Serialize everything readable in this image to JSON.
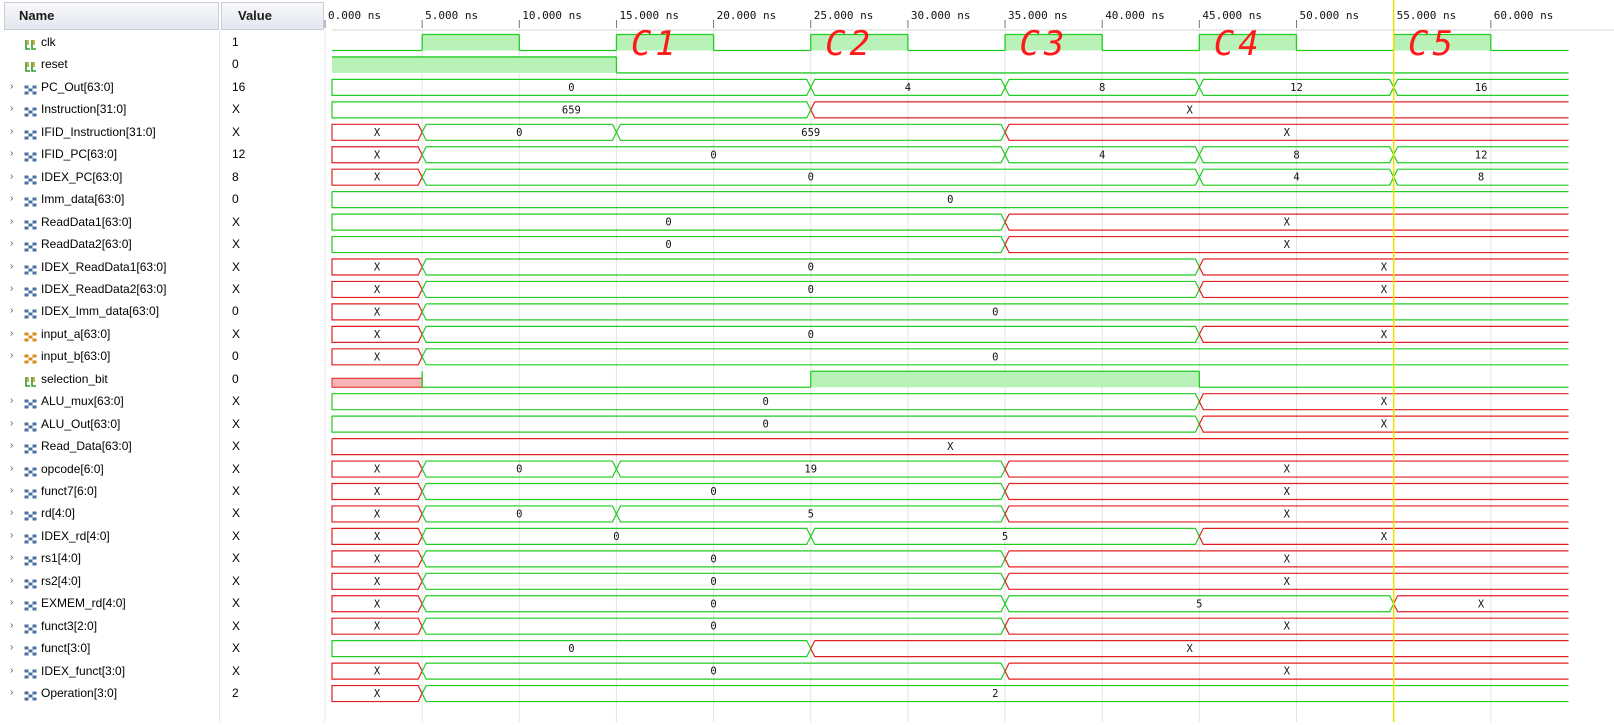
{
  "header": {
    "name_label": "Name",
    "value_label": "Value"
  },
  "time_axis": {
    "ticks": [
      "0.000 ns",
      "5.000 ns",
      "10.000 ns",
      "15.000 ns",
      "20.000 ns",
      "25.000 ns",
      "30.000 ns",
      "35.000 ns",
      "40.000 ns",
      "45.000 ns",
      "50.000 ns",
      "55.000 ns",
      "60.000 ns"
    ],
    "cursor_ns": 55
  },
  "annotations": [
    "C1",
    "C2",
    "C3",
    "C4",
    "C5"
  ],
  "colors": {
    "signal_green": "#22cc22",
    "fill_green": "#b9f2b9",
    "undefined_red": "#e02020",
    "fill_red": "#f7b3b3",
    "cursor": "#f0e000",
    "annotation": "#ff1a1a"
  },
  "signals": [
    {
      "name": "clk",
      "value": "1",
      "kind": "bit",
      "icon": "bit-signal-icon",
      "expandable": false,
      "segs": [
        [
          0,
          5,
          "0"
        ],
        [
          5,
          10,
          "1"
        ],
        [
          10,
          15,
          "0"
        ],
        [
          15,
          20,
          "1"
        ],
        [
          20,
          25,
          "0"
        ],
        [
          25,
          30,
          "1"
        ],
        [
          30,
          35,
          "0"
        ],
        [
          35,
          40,
          "1"
        ],
        [
          40,
          45,
          "0"
        ],
        [
          45,
          50,
          "1"
        ],
        [
          50,
          55,
          "0"
        ],
        [
          55,
          60,
          "1"
        ],
        [
          60,
          64,
          "0"
        ]
      ]
    },
    {
      "name": "reset",
      "value": "0",
      "kind": "bit",
      "icon": "bit-signal-icon",
      "expandable": false,
      "segs": [
        [
          0,
          15,
          "1"
        ],
        [
          15,
          64,
          "0"
        ]
      ]
    },
    {
      "name": "PC_Out[63:0]",
      "value": "16",
      "kind": "bus",
      "icon": "bus-signal-icon",
      "expandable": true,
      "segs": [
        [
          0,
          25,
          "0"
        ],
        [
          25,
          35,
          "4"
        ],
        [
          35,
          45,
          "8"
        ],
        [
          45,
          55,
          "12"
        ],
        [
          55,
          64,
          "16"
        ]
      ]
    },
    {
      "name": "Instruction[31:0]",
      "value": "X",
      "kind": "bus",
      "icon": "bus-signal-icon",
      "expandable": true,
      "segs": [
        [
          0,
          25,
          "659"
        ],
        [
          25,
          64,
          "X"
        ]
      ]
    },
    {
      "name": "IFID_Instruction[31:0]",
      "value": "X",
      "kind": "bus",
      "icon": "bus-signal-icon",
      "expandable": true,
      "segs": [
        [
          0,
          5,
          "X"
        ],
        [
          5,
          15,
          "0"
        ],
        [
          15,
          35,
          "659"
        ],
        [
          35,
          64,
          "X"
        ]
      ]
    },
    {
      "name": "IFID_PC[63:0]",
      "value": "12",
      "kind": "bus",
      "icon": "bus-signal-icon",
      "expandable": true,
      "segs": [
        [
          0,
          5,
          "X"
        ],
        [
          5,
          35,
          "0"
        ],
        [
          35,
          45,
          "4"
        ],
        [
          45,
          55,
          "8"
        ],
        [
          55,
          64,
          "12"
        ]
      ]
    },
    {
      "name": "IDEX_PC[63:0]",
      "value": "8",
      "kind": "bus",
      "icon": "bus-signal-icon",
      "expandable": true,
      "segs": [
        [
          0,
          5,
          "X"
        ],
        [
          5,
          45,
          "0"
        ],
        [
          45,
          55,
          "4"
        ],
        [
          55,
          64,
          "8"
        ]
      ]
    },
    {
      "name": "Imm_data[63:0]",
      "value": "0",
      "kind": "bus",
      "icon": "bus-signal-icon",
      "expandable": true,
      "segs": [
        [
          0,
          64,
          "0"
        ]
      ]
    },
    {
      "name": "ReadData1[63:0]",
      "value": "X",
      "kind": "bus",
      "icon": "bus-signal-icon",
      "expandable": true,
      "segs": [
        [
          0,
          35,
          "0"
        ],
        [
          35,
          64,
          "X"
        ]
      ]
    },
    {
      "name": "ReadData2[63:0]",
      "value": "X",
      "kind": "bus",
      "icon": "bus-signal-icon",
      "expandable": true,
      "segs": [
        [
          0,
          35,
          "0"
        ],
        [
          35,
          64,
          "X"
        ]
      ]
    },
    {
      "name": "IDEX_ReadData1[63:0]",
      "value": "X",
      "kind": "bus",
      "icon": "bus-signal-icon",
      "expandable": true,
      "segs": [
        [
          0,
          5,
          "X"
        ],
        [
          5,
          45,
          "0"
        ],
        [
          45,
          64,
          "X"
        ]
      ]
    },
    {
      "name": "IDEX_ReadData2[63:0]",
      "value": "X",
      "kind": "bus",
      "icon": "bus-signal-icon",
      "expandable": true,
      "segs": [
        [
          0,
          5,
          "X"
        ],
        [
          5,
          45,
          "0"
        ],
        [
          45,
          64,
          "X"
        ]
      ]
    },
    {
      "name": "IDEX_Imm_data[63:0]",
      "value": "0",
      "kind": "bus",
      "icon": "bus-signal-icon",
      "expandable": true,
      "segs": [
        [
          0,
          5,
          "X"
        ],
        [
          5,
          64,
          "0"
        ]
      ]
    },
    {
      "name": "input_a[63:0]",
      "value": "X",
      "kind": "bus",
      "icon": "input-bus-icon",
      "expandable": true,
      "segs": [
        [
          0,
          5,
          "X"
        ],
        [
          5,
          45,
          "0"
        ],
        [
          45,
          64,
          "X"
        ]
      ]
    },
    {
      "name": "input_b[63:0]",
      "value": "0",
      "kind": "bus",
      "icon": "input-bus-icon",
      "expandable": true,
      "segs": [
        [
          0,
          5,
          "X"
        ],
        [
          5,
          64,
          "0"
        ]
      ]
    },
    {
      "name": "selection_bit",
      "value": "0",
      "kind": "bit",
      "icon": "bit-signal-icon",
      "expandable": false,
      "segs": [
        [
          0,
          5,
          "X"
        ],
        [
          5,
          25,
          "0"
        ],
        [
          25,
          45,
          "1"
        ],
        [
          45,
          64,
          "0"
        ]
      ]
    },
    {
      "name": "ALU_mux[63:0]",
      "value": "X",
      "kind": "bus",
      "icon": "bus-signal-icon",
      "expandable": true,
      "segs": [
        [
          0,
          45,
          "0"
        ],
        [
          45,
          64,
          "X"
        ]
      ]
    },
    {
      "name": "ALU_Out[63:0]",
      "value": "X",
      "kind": "bus",
      "icon": "bus-signal-icon",
      "expandable": true,
      "segs": [
        [
          0,
          45,
          "0"
        ],
        [
          45,
          64,
          "X"
        ]
      ]
    },
    {
      "name": "Read_Data[63:0]",
      "value": "X",
      "kind": "bus",
      "icon": "bus-signal-icon",
      "expandable": true,
      "segs": [
        [
          0,
          64,
          "X"
        ]
      ]
    },
    {
      "name": "opcode[6:0]",
      "value": "X",
      "kind": "bus",
      "icon": "bus-signal-icon",
      "expandable": true,
      "segs": [
        [
          0,
          5,
          "X"
        ],
        [
          5,
          15,
          "0"
        ],
        [
          15,
          35,
          "19"
        ],
        [
          35,
          64,
          "X"
        ]
      ]
    },
    {
      "name": "funct7[6:0]",
      "value": "X",
      "kind": "bus",
      "icon": "bus-signal-icon",
      "expandable": true,
      "segs": [
        [
          0,
          5,
          "X"
        ],
        [
          5,
          35,
          "0"
        ],
        [
          35,
          64,
          "X"
        ]
      ]
    },
    {
      "name": "rd[4:0]",
      "value": "X",
      "kind": "bus",
      "icon": "bus-signal-icon",
      "expandable": true,
      "segs": [
        [
          0,
          5,
          "X"
        ],
        [
          5,
          15,
          "0"
        ],
        [
          15,
          35,
          "5"
        ],
        [
          35,
          64,
          "X"
        ]
      ]
    },
    {
      "name": "IDEX_rd[4:0]",
      "value": "X",
      "kind": "bus",
      "icon": "bus-signal-icon",
      "expandable": true,
      "segs": [
        [
          0,
          5,
          "X"
        ],
        [
          5,
          25,
          "0"
        ],
        [
          25,
          45,
          "5"
        ],
        [
          45,
          64,
          "X"
        ]
      ]
    },
    {
      "name": "rs1[4:0]",
      "value": "X",
      "kind": "bus",
      "icon": "bus-signal-icon",
      "expandable": true,
      "segs": [
        [
          0,
          5,
          "X"
        ],
        [
          5,
          35,
          "0"
        ],
        [
          35,
          64,
          "X"
        ]
      ]
    },
    {
      "name": "rs2[4:0]",
      "value": "X",
      "kind": "bus",
      "icon": "bus-signal-icon",
      "expandable": true,
      "segs": [
        [
          0,
          5,
          "X"
        ],
        [
          5,
          35,
          "0"
        ],
        [
          35,
          64,
          "X"
        ]
      ]
    },
    {
      "name": "EXMEM_rd[4:0]",
      "value": "X",
      "kind": "bus",
      "icon": "bus-signal-icon",
      "expandable": true,
      "segs": [
        [
          0,
          5,
          "X"
        ],
        [
          5,
          35,
          "0"
        ],
        [
          35,
          55,
          "5"
        ],
        [
          55,
          64,
          "X"
        ]
      ]
    },
    {
      "name": "funct3[2:0]",
      "value": "X",
      "kind": "bus",
      "icon": "bus-signal-icon",
      "expandable": true,
      "segs": [
        [
          0,
          5,
          "X"
        ],
        [
          5,
          35,
          "0"
        ],
        [
          35,
          64,
          "X"
        ]
      ]
    },
    {
      "name": "funct[3:0]",
      "value": "X",
      "kind": "bus",
      "icon": "bus-signal-icon",
      "expandable": true,
      "segs": [
        [
          0,
          25,
          "0"
        ],
        [
          25,
          64,
          "X"
        ]
      ]
    },
    {
      "name": "IDEX_funct[3:0]",
      "value": "X",
      "kind": "bus",
      "icon": "bus-signal-icon",
      "expandable": true,
      "segs": [
        [
          0,
          5,
          "X"
        ],
        [
          5,
          35,
          "0"
        ],
        [
          35,
          64,
          "X"
        ]
      ]
    },
    {
      "name": "Operation[3:0]",
      "value": "2",
      "kind": "bus",
      "icon": "bus-signal-icon",
      "expandable": true,
      "segs": [
        [
          0,
          5,
          "X"
        ],
        [
          5,
          64,
          "2"
        ]
      ]
    }
  ]
}
